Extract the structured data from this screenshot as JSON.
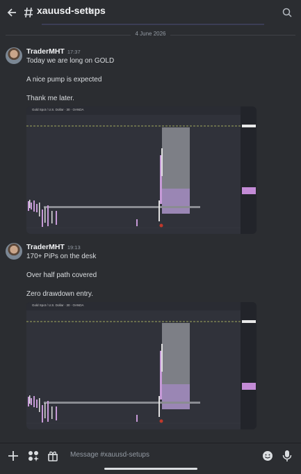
{
  "header": {
    "channel": "xauusd-setups"
  },
  "date_divider": "4 June 2026",
  "messages": [
    {
      "author": "TraderMHT",
      "time": "17:37",
      "lines": [
        "Today we are long on GOLD",
        "A nice pump is expected",
        "Thank me later."
      ],
      "image": {
        "title": "Gold Spot / U.S. Dollar · 30 · OANDA"
      }
    },
    {
      "author": "TraderMHT",
      "time": "19:13",
      "lines": [
        "170+ PiPs on the desk",
        "Over half path covered",
        "Zero drawdown entry."
      ],
      "image": {
        "title": "Gold Spot / U.S. Dollar · 30 · OANDA"
      }
    }
  ],
  "composer": {
    "placeholder": "Message #xauusd-setups"
  }
}
